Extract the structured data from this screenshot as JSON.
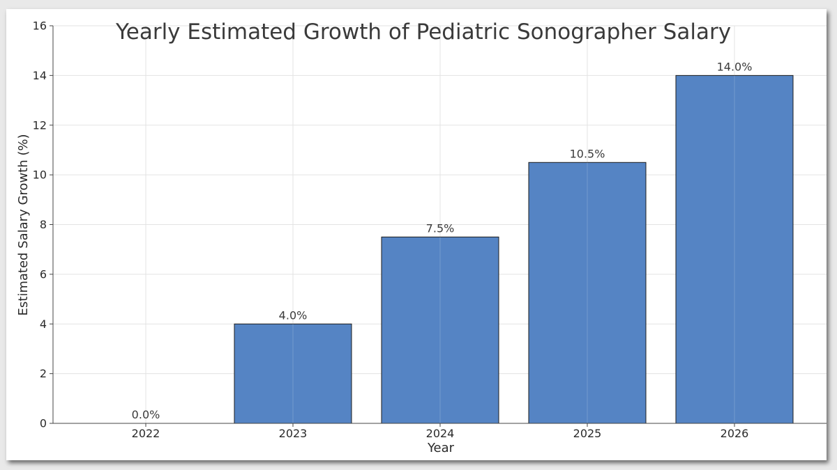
{
  "chart_data": {
    "type": "bar",
    "title": "Yearly Estimated Growth of Pediatric Sonographer Salary",
    "xlabel": "Year",
    "ylabel": "Estimated Salary Growth (%)",
    "categories": [
      "2022",
      "2023",
      "2024",
      "2025",
      "2026"
    ],
    "values": [
      0.0,
      4.0,
      7.5,
      10.5,
      14.0
    ],
    "data_labels": [
      "0.0%",
      "4.0%",
      "7.5%",
      "10.5%",
      "14.0%"
    ],
    "ylim": [
      0,
      16
    ],
    "yticks": [
      "0",
      "2",
      "4",
      "6",
      "8",
      "10",
      "12",
      "14",
      "16"
    ],
    "grid": true,
    "legend": "none",
    "bar_color": "#5584c4",
    "bar_edge_color": "#1c1c1c"
  }
}
